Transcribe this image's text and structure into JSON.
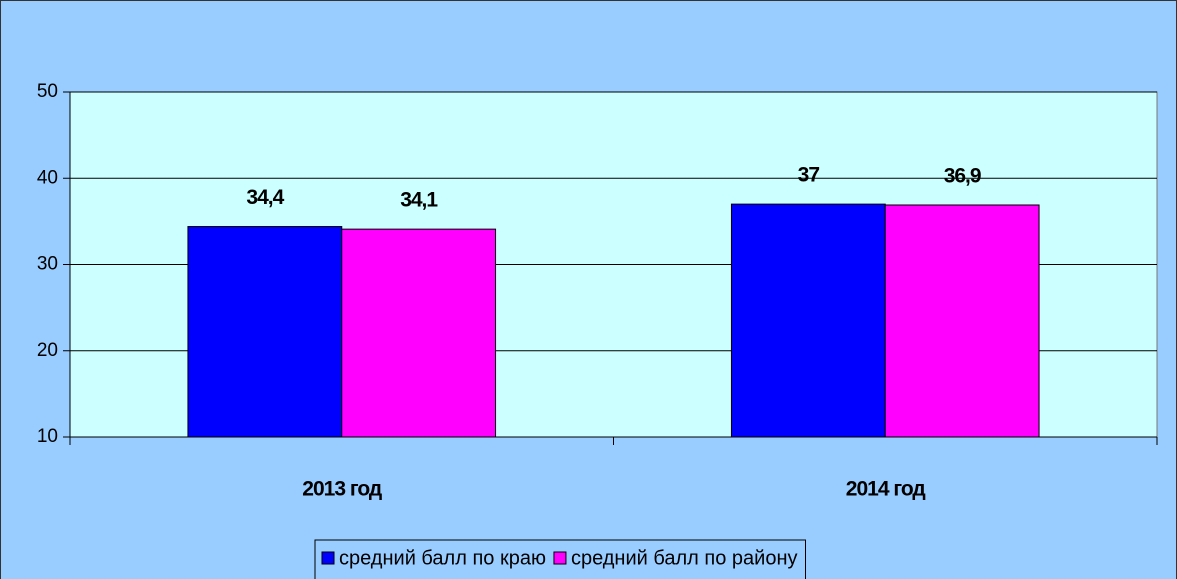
{
  "chart_data": {
    "type": "bar",
    "categories": [
      "2013 год",
      "2014 год"
    ],
    "series": [
      {
        "name": "средний балл по краю",
        "color": "#0000ff",
        "values": [
          34.4,
          37
        ],
        "value_labels": [
          "34,4",
          "37"
        ]
      },
      {
        "name": "средний балл по району",
        "color": "#ff00ff",
        "values": [
          34.1,
          36.9
        ],
        "value_labels": [
          "34,1",
          "36,9"
        ]
      }
    ],
    "ylim": [
      10,
      50
    ],
    "yticks": [
      10,
      20,
      30,
      40,
      50
    ],
    "grid": true,
    "legend": "bottom"
  }
}
